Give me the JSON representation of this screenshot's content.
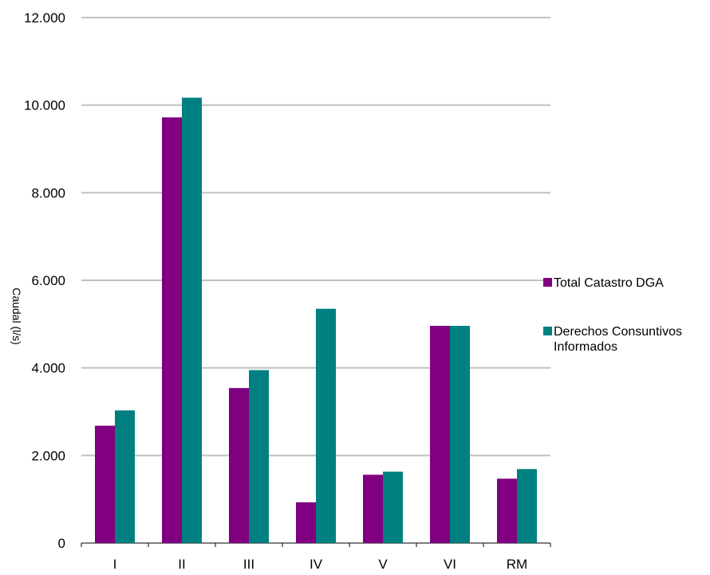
{
  "chart_data": {
    "type": "bar",
    "title": "",
    "xlabel": "",
    "ylabel": "Caudal (l/s)",
    "categories": [
      "I",
      "II",
      "III",
      "IV",
      "V",
      "VI",
      "RM"
    ],
    "series": [
      {
        "name": "Total Catastro DGA",
        "color": "#800080",
        "values": [
          2680,
          9720,
          3540,
          930,
          1560,
          4960,
          1470
        ]
      },
      {
        "name": "Derechos Consuntivos Informados",
        "color": "#008080",
        "values": [
          3030,
          10170,
          3950,
          5350,
          1630,
          4960,
          1690
        ]
      }
    ],
    "ylim": [
      0,
      12000
    ],
    "yticks": [
      0,
      2000,
      4000,
      6000,
      8000,
      10000,
      12000
    ],
    "ytick_labels": [
      "0",
      "2.000",
      "4.000",
      "6.000",
      "8.000",
      "10.000",
      "12.000"
    ],
    "grid": true,
    "gridline_color": "#c0c0c0",
    "legend_placement": "right"
  }
}
